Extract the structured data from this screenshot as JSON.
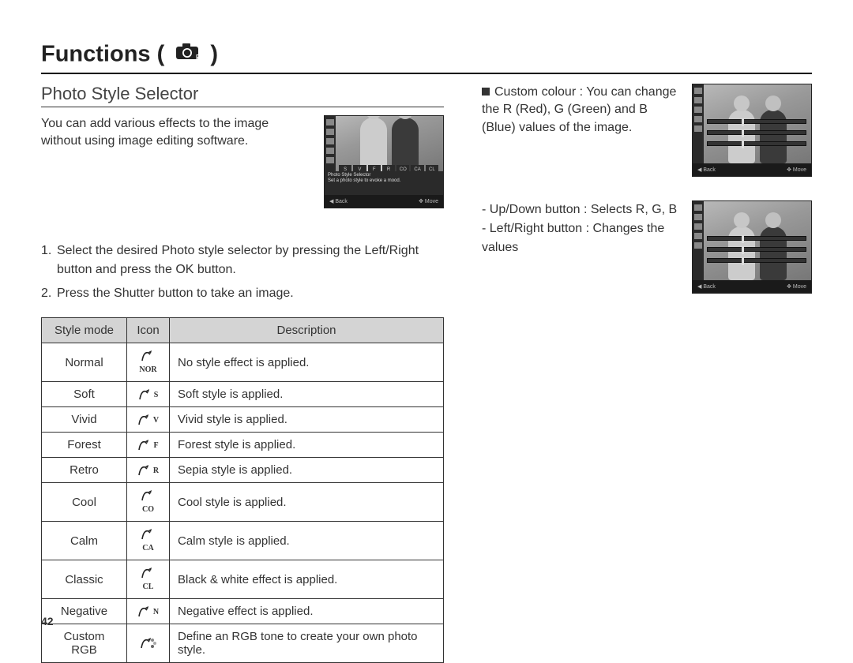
{
  "page": {
    "title_prefix": "Functions ( ",
    "title_suffix": " )",
    "page_number": "42"
  },
  "left": {
    "section_title": "Photo Style Selector",
    "intro": "You can add various effects to the image without using image editing software.",
    "thumb": {
      "line1": "Photo Style Selector",
      "line2": "Set a photo style to evoke a mood.",
      "back": "Back",
      "move": "Move"
    },
    "steps": [
      "Select the desired Photo style selector by pressing the Left/Right button and press the OK button.",
      "Press the Shutter button to take an image."
    ],
    "table": {
      "headers": [
        "Style mode",
        "Icon",
        "Description"
      ],
      "rows": [
        {
          "mode": "Normal",
          "icon": "NOR",
          "desc": "No style effect is applied."
        },
        {
          "mode": "Soft",
          "icon": "S",
          "desc": "Soft style is applied."
        },
        {
          "mode": "Vivid",
          "icon": "V",
          "desc": "Vivid style is applied."
        },
        {
          "mode": "Forest",
          "icon": "F",
          "desc": "Forest style is applied."
        },
        {
          "mode": "Retro",
          "icon": "R",
          "desc": "Sepia style is applied."
        },
        {
          "mode": "Cool",
          "icon": "CO",
          "desc": "Cool style is applied."
        },
        {
          "mode": "Calm",
          "icon": "CA",
          "desc": "Calm style is applied."
        },
        {
          "mode": "Classic",
          "icon": "CL",
          "desc": "Black & white effect is applied."
        },
        {
          "mode": "Negative",
          "icon": "N",
          "desc": "Negative effect is applied."
        },
        {
          "mode": "Custom RGB",
          "icon": "",
          "desc": "Define an RGB tone to create your own photo style."
        }
      ]
    }
  },
  "right": {
    "custom_label": "Custom colour :",
    "custom_desc": "You can change the R (Red), G (Green) and B (Blue) values of the image.",
    "bullets": [
      "Up/Down button : Selects R, G, B",
      "Left/Right button : Changes the values"
    ],
    "thumb": {
      "back": "Back",
      "move": "Move"
    }
  },
  "colors": {
    "text": "#333333",
    "header_bg": "#d4d4d4",
    "border": "#333333",
    "thumb_bg": "#555555"
  }
}
